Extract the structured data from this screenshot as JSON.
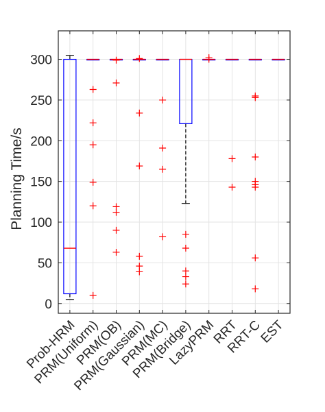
{
  "chart_data": {
    "type": "box",
    "ylabel": "Planning Time/s",
    "xlabel": "",
    "ylim": [
      -12,
      335
    ],
    "yticks": [
      0,
      50,
      100,
      150,
      200,
      250,
      300
    ],
    "grid": true,
    "categories": [
      "Prob-HRM",
      "PRM(Uniform)",
      "PRM(OB)",
      "PRM(Gaussian)",
      "PRM(MC)",
      "PRM(Bridge)",
      "LazyPRM",
      "RRT",
      "RRT-C",
      "EST"
    ],
    "boxes": [
      {
        "category": "Prob-HRM",
        "q1": 12,
        "median": 68,
        "q3": 300,
        "whisker_low": 5,
        "whisker_high": 305,
        "outliers": []
      },
      {
        "category": "PRM(Uniform)",
        "q1": 300,
        "median": 300,
        "q3": 300,
        "whisker_low": 300,
        "whisker_high": 300,
        "outliers": [
          263,
          222,
          195,
          149,
          120,
          10
        ]
      },
      {
        "category": "PRM(OB)",
        "q1": 300,
        "median": 300,
        "q3": 300,
        "whisker_low": 300,
        "whisker_high": 300,
        "outliers": [
          299,
          271,
          119,
          112,
          90,
          63
        ]
      },
      {
        "category": "PRM(Gaussian)",
        "q1": 300,
        "median": 300,
        "q3": 300,
        "whisker_low": 300,
        "whisker_high": 300,
        "outliers": [
          301,
          234,
          169,
          58,
          46,
          39
        ]
      },
      {
        "category": "PRM(MC)",
        "q1": 300,
        "median": 300,
        "q3": 300,
        "whisker_low": 300,
        "whisker_high": 300,
        "outliers": [
          250,
          191,
          165,
          82
        ]
      },
      {
        "category": "PRM(Bridge)",
        "q1": 221,
        "median": 300,
        "q3": 300,
        "whisker_low": 123,
        "whisker_high": 300,
        "outliers": [
          85,
          68,
          40,
          33,
          24
        ]
      },
      {
        "category": "LazyPRM",
        "q1": 300,
        "median": 300,
        "q3": 300,
        "whisker_low": 300,
        "whisker_high": 300,
        "outliers": [
          302,
          300
        ]
      },
      {
        "category": "RRT",
        "q1": 300,
        "median": 300,
        "q3": 300,
        "whisker_low": 300,
        "whisker_high": 300,
        "outliers": [
          178,
          143
        ]
      },
      {
        "category": "RRT-C",
        "q1": 300,
        "median": 300,
        "q3": 300,
        "whisker_low": 300,
        "whisker_high": 300,
        "outliers": [
          255,
          253,
          180,
          150,
          146,
          143,
          56,
          18
        ]
      },
      {
        "category": "EST",
        "q1": 300,
        "median": 300,
        "q3": 300,
        "whisker_low": 300,
        "whisker_high": 300,
        "outliers": []
      }
    ],
    "colors": {
      "box": "#0000ff",
      "median": "#ff0000",
      "outlier": "#ff0000",
      "whisker": "#000000",
      "axis": "#262626",
      "grid": "#e3e3e3"
    }
  }
}
